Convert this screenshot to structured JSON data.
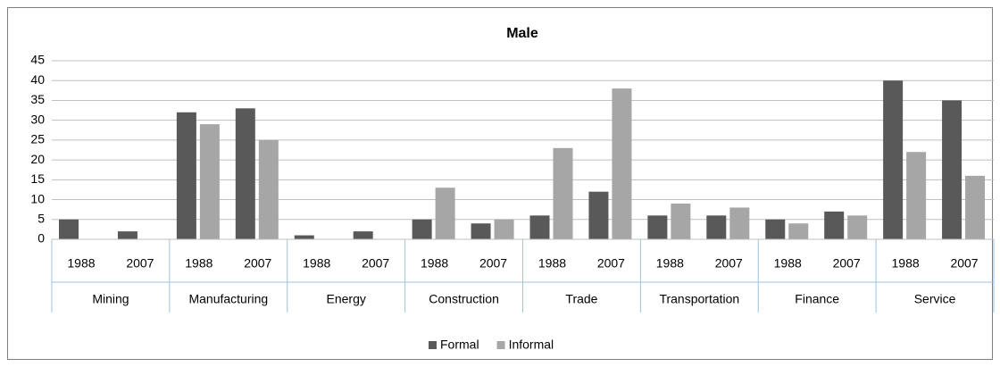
{
  "chart_data": {
    "type": "bar",
    "title": "Male",
    "categories": [
      "1988",
      "2007",
      "1988",
      "2007",
      "1988",
      "2007",
      "1988",
      "2007",
      "1988",
      "2007",
      "1988",
      "2007",
      "1988",
      "2007",
      "1988",
      "2007"
    ],
    "groups": [
      "Mining",
      "Manufacturing",
      "Energy",
      "Construction",
      "Trade",
      "Transportation",
      "Finance",
      "Service"
    ],
    "series": [
      {
        "name": "Formal",
        "color": "#595959",
        "values": [
          5,
          2,
          32,
          33,
          1,
          2,
          5,
          4,
          6,
          12,
          6,
          6,
          5,
          7,
          40,
          35
        ]
      },
      {
        "name": "Informal",
        "color": "#a6a6a6",
        "values": [
          0,
          0,
          29,
          25,
          0,
          0,
          13,
          5,
          23,
          38,
          9,
          8,
          4,
          6,
          22,
          16
        ]
      }
    ],
    "ylim": [
      0,
      45
    ],
    "yticks": [
      0,
      5,
      10,
      15,
      20,
      25,
      30,
      35,
      40,
      45
    ],
    "grid": true,
    "legend": "bottom"
  }
}
